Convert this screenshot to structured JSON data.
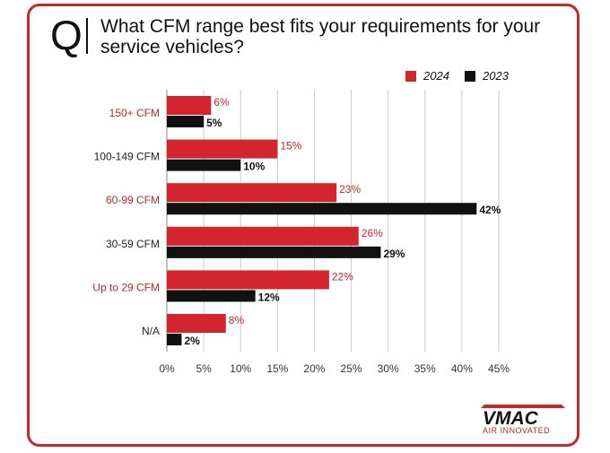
{
  "header": {
    "q_letter": "Q",
    "question": "What CFM range best fits your requirements for your service vehicles?"
  },
  "logo": {
    "word": "VMAC",
    "tagline": "AIR INNOVATED"
  },
  "colors": {
    "accent": "#c8272c",
    "series_2024": "#d4252f",
    "series_2023": "#111111",
    "grid": "#cccccc",
    "label_highlight": "#c8272c",
    "label_normal": "#222222"
  },
  "chart_data": {
    "type": "bar",
    "orientation": "horizontal",
    "title": "",
    "xlabel": "",
    "ylabel": "",
    "categories": [
      "150+ CFM",
      "100-149 CFM",
      "60-99 CFM",
      "30-59 CFM",
      "Up to 29 CFM",
      "N/A"
    ],
    "category_highlight": [
      true,
      false,
      true,
      false,
      true,
      false
    ],
    "series": [
      {
        "name": "2024",
        "values": [
          6,
          15,
          23,
          26,
          22,
          8
        ],
        "labels": [
          "6%",
          "15%",
          "23%",
          "26%",
          "22%",
          "8%"
        ]
      },
      {
        "name": "2023",
        "values": [
          5,
          10,
          42,
          29,
          12,
          2
        ],
        "labels": [
          "5%",
          "10%",
          "42%",
          "29%",
          "12%",
          "2%"
        ]
      }
    ],
    "xlim": [
      0,
      45
    ],
    "xticks": [
      0,
      5,
      10,
      15,
      20,
      25,
      30,
      35,
      40,
      45
    ],
    "xtick_labels": [
      "0%",
      "5%",
      "10%",
      "15%",
      "20%",
      "25%",
      "30%",
      "35%",
      "40%",
      "45%"
    ],
    "grid": true,
    "legend_position": "top-right"
  }
}
